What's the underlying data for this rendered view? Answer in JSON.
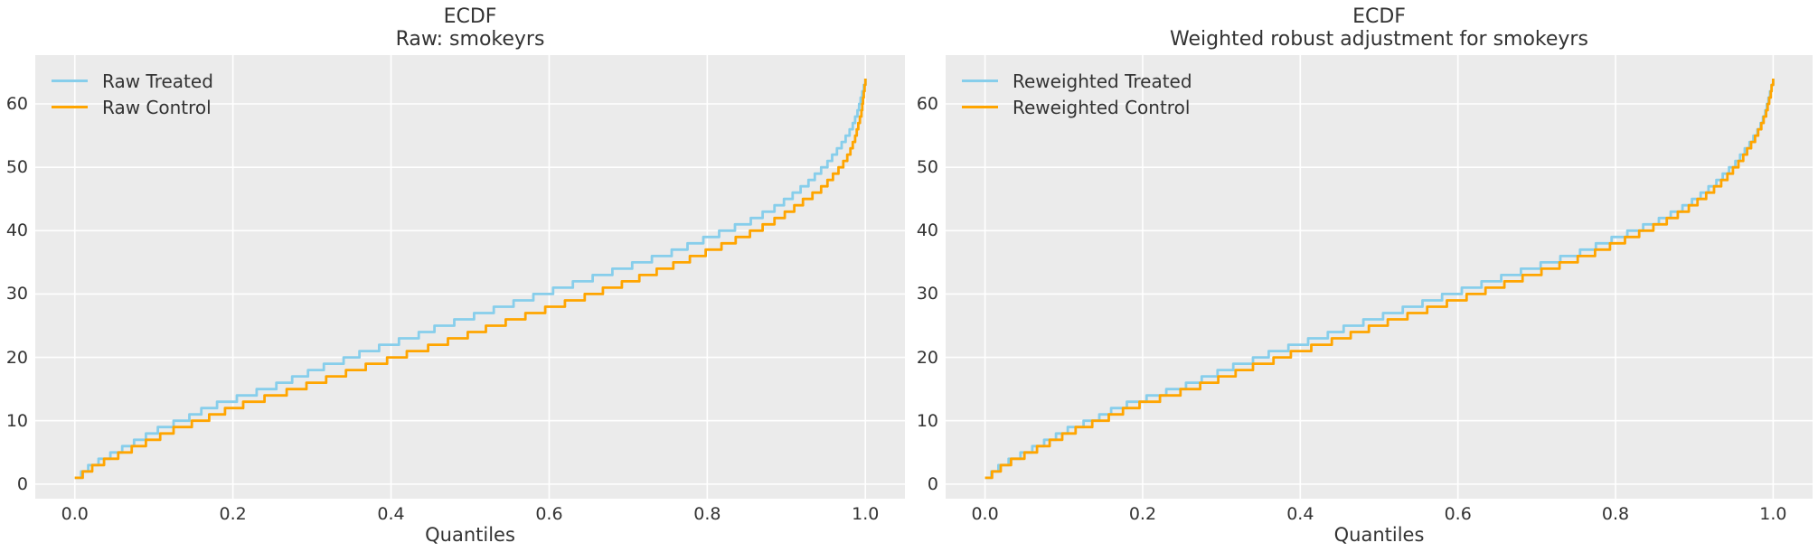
{
  "figure": {
    "background": "#ffffff",
    "axes_background": "#ebebeb",
    "grid_color": "#ffffff",
    "text_color": "#333333",
    "accent_colors": {
      "treated_line": "#87ceeb",
      "control_line": "#ffa500"
    }
  },
  "chart_data": [
    {
      "type": "line",
      "subtype": "quantile-step",
      "title": "ECDF",
      "subtitle": "Raw: smokeyrs",
      "xlabel": "Quantiles",
      "ylabel": "",
      "xlim": [
        -0.05,
        1.05
      ],
      "ylim": [
        -2.3,
        67.7
      ],
      "grid": true,
      "legend_position": "upper-left",
      "xticks": {
        "values": [
          0.0,
          0.2,
          0.4,
          0.6,
          0.8,
          1.0
        ],
        "labels": [
          "0.0",
          "0.2",
          "0.4",
          "0.6",
          "0.8",
          "1.0"
        ]
      },
      "yticks": {
        "values": [
          0,
          10,
          20,
          30,
          40,
          50,
          60
        ],
        "labels": [
          "0",
          "10",
          "20",
          "30",
          "40",
          "50",
          "60"
        ]
      },
      "series": [
        {
          "name": "Raw Treated",
          "color": "#87ceeb",
          "points": [
            [
              0,
              1
            ],
            [
              0.008,
              2
            ],
            [
              0.017,
              3
            ],
            [
              0.03,
              4
            ],
            [
              0.045,
              5
            ],
            [
              0.06,
              6
            ],
            [
              0.075,
              7
            ],
            [
              0.09,
              8
            ],
            [
              0.105,
              9
            ],
            [
              0.125,
              10
            ],
            [
              0.145,
              11
            ],
            [
              0.16,
              12
            ],
            [
              0.18,
              13
            ],
            [
              0.205,
              14
            ],
            [
              0.23,
              15
            ],
            [
              0.255,
              16
            ],
            [
              0.275,
              17
            ],
            [
              0.295,
              18
            ],
            [
              0.315,
              19
            ],
            [
              0.34,
              20
            ],
            [
              0.36,
              21
            ],
            [
              0.385,
              22
            ],
            [
              0.41,
              23
            ],
            [
              0.435,
              24
            ],
            [
              0.455,
              25
            ],
            [
              0.48,
              26
            ],
            [
              0.505,
              27
            ],
            [
              0.53,
              28
            ],
            [
              0.555,
              29
            ],
            [
              0.58,
              30
            ],
            [
              0.605,
              31
            ],
            [
              0.63,
              32
            ],
            [
              0.655,
              33
            ],
            [
              0.68,
              34
            ],
            [
              0.705,
              35
            ],
            [
              0.73,
              36
            ],
            [
              0.755,
              37
            ],
            [
              0.775,
              38
            ],
            [
              0.795,
              39
            ],
            [
              0.815,
              40
            ],
            [
              0.835,
              41
            ],
            [
              0.855,
              42
            ],
            [
              0.87,
              43
            ],
            [
              0.885,
              44
            ],
            [
              0.897,
              45
            ],
            [
              0.908,
              46
            ],
            [
              0.918,
              47
            ],
            [
              0.928,
              48
            ],
            [
              0.936,
              49
            ],
            [
              0.944,
              50
            ],
            [
              0.952,
              51
            ],
            [
              0.958,
              52
            ],
            [
              0.964,
              53
            ],
            [
              0.97,
              54
            ],
            [
              0.975,
              55
            ],
            [
              0.98,
              56
            ],
            [
              0.984,
              57
            ],
            [
              0.987,
              58
            ],
            [
              0.99,
              59
            ],
            [
              0.992,
              60
            ],
            [
              0.994,
              61
            ],
            [
              0.996,
              62
            ],
            [
              0.998,
              63
            ],
            [
              1,
              64
            ]
          ]
        },
        {
          "name": "Raw Control",
          "color": "#ffa500",
          "points": [
            [
              0,
              1
            ],
            [
              0.01,
              2
            ],
            [
              0.022,
              3
            ],
            [
              0.037,
              4
            ],
            [
              0.055,
              5
            ],
            [
              0.072,
              6
            ],
            [
              0.09,
              7
            ],
            [
              0.108,
              8
            ],
            [
              0.125,
              9
            ],
            [
              0.148,
              10
            ],
            [
              0.17,
              11
            ],
            [
              0.19,
              12
            ],
            [
              0.213,
              13
            ],
            [
              0.24,
              14
            ],
            [
              0.268,
              15
            ],
            [
              0.293,
              16
            ],
            [
              0.318,
              17
            ],
            [
              0.343,
              18
            ],
            [
              0.368,
              19
            ],
            [
              0.395,
              20
            ],
            [
              0.42,
              21
            ],
            [
              0.447,
              22
            ],
            [
              0.472,
              23
            ],
            [
              0.497,
              24
            ],
            [
              0.52,
              25
            ],
            [
              0.545,
              26
            ],
            [
              0.57,
              27
            ],
            [
              0.595,
              28
            ],
            [
              0.62,
              29
            ],
            [
              0.645,
              30
            ],
            [
              0.668,
              31
            ],
            [
              0.692,
              32
            ],
            [
              0.714,
              33
            ],
            [
              0.736,
              34
            ],
            [
              0.757,
              35
            ],
            [
              0.778,
              36
            ],
            [
              0.798,
              37
            ],
            [
              0.818,
              38
            ],
            [
              0.836,
              39
            ],
            [
              0.854,
              40
            ],
            [
              0.87,
              41
            ],
            [
              0.885,
              42
            ],
            [
              0.898,
              43
            ],
            [
              0.91,
              44
            ],
            [
              0.921,
              45
            ],
            [
              0.933,
              46
            ],
            [
              0.944,
              47
            ],
            [
              0.952,
              48
            ],
            [
              0.959,
              49
            ],
            [
              0.966,
              50
            ],
            [
              0.972,
              51
            ],
            [
              0.977,
              52
            ],
            [
              0.981,
              53
            ],
            [
              0.984,
              54
            ],
            [
              0.987,
              55
            ],
            [
              0.989,
              56
            ],
            [
              0.991,
              57
            ],
            [
              0.993,
              58
            ],
            [
              0.995,
              59
            ],
            [
              0.996,
              60
            ],
            [
              0.997,
              61
            ],
            [
              0.998,
              62
            ],
            [
              0.999,
              63
            ],
            [
              1,
              64
            ]
          ]
        }
      ]
    },
    {
      "type": "line",
      "subtype": "quantile-step",
      "title": "ECDF",
      "subtitle": "Weighted robust adjustment for smokeyrs",
      "xlabel": "Quantiles",
      "ylabel": "",
      "xlim": [
        -0.05,
        1.05
      ],
      "ylim": [
        -2.3,
        67.7
      ],
      "grid": true,
      "legend_position": "upper-left",
      "xticks": {
        "values": [
          0.0,
          0.2,
          0.4,
          0.6,
          0.8,
          1.0
        ],
        "labels": [
          "0.0",
          "0.2",
          "0.4",
          "0.6",
          "0.8",
          "1.0"
        ]
      },
      "yticks": {
        "values": [
          0,
          10,
          20,
          30,
          40,
          50,
          60
        ],
        "labels": [
          "0",
          "10",
          "20",
          "30",
          "40",
          "50",
          "60"
        ]
      },
      "series": [
        {
          "name": "Reweighted Treated",
          "color": "#87ceeb",
          "points": [
            [
              0,
              1
            ],
            [
              0.008,
              2
            ],
            [
              0.017,
              3
            ],
            [
              0.03,
              4
            ],
            [
              0.045,
              5
            ],
            [
              0.06,
              6
            ],
            [
              0.075,
              7
            ],
            [
              0.09,
              8
            ],
            [
              0.105,
              9
            ],
            [
              0.125,
              10
            ],
            [
              0.145,
              11
            ],
            [
              0.16,
              12
            ],
            [
              0.18,
              13
            ],
            [
              0.205,
              14
            ],
            [
              0.23,
              15
            ],
            [
              0.255,
              16
            ],
            [
              0.275,
              17
            ],
            [
              0.295,
              18
            ],
            [
              0.315,
              19
            ],
            [
              0.34,
              20
            ],
            [
              0.36,
              21
            ],
            [
              0.385,
              22
            ],
            [
              0.41,
              23
            ],
            [
              0.435,
              24
            ],
            [
              0.455,
              25
            ],
            [
              0.48,
              26
            ],
            [
              0.505,
              27
            ],
            [
              0.53,
              28
            ],
            [
              0.555,
              29
            ],
            [
              0.58,
              30
            ],
            [
              0.605,
              31
            ],
            [
              0.63,
              32
            ],
            [
              0.655,
              33
            ],
            [
              0.68,
              34
            ],
            [
              0.705,
              35
            ],
            [
              0.73,
              36
            ],
            [
              0.755,
              37
            ],
            [
              0.775,
              38
            ],
            [
              0.795,
              39
            ],
            [
              0.815,
              40
            ],
            [
              0.835,
              41
            ],
            [
              0.855,
              42
            ],
            [
              0.87,
              43
            ],
            [
              0.885,
              44
            ],
            [
              0.897,
              45
            ],
            [
              0.908,
              46
            ],
            [
              0.918,
              47
            ],
            [
              0.928,
              48
            ],
            [
              0.936,
              49
            ],
            [
              0.944,
              50
            ],
            [
              0.952,
              51
            ],
            [
              0.958,
              52
            ],
            [
              0.964,
              53
            ],
            [
              0.97,
              54
            ],
            [
              0.975,
              55
            ],
            [
              0.98,
              56
            ],
            [
              0.984,
              57
            ],
            [
              0.987,
              58
            ],
            [
              0.99,
              59
            ],
            [
              0.992,
              60
            ],
            [
              0.994,
              61
            ],
            [
              0.996,
              62
            ],
            [
              0.998,
              63
            ],
            [
              1,
              64
            ]
          ]
        },
        {
          "name": "Reweighted Control",
          "color": "#ffa500",
          "points": [
            [
              0,
              1
            ],
            [
              0.009,
              2
            ],
            [
              0.02,
              3
            ],
            [
              0.033,
              4
            ],
            [
              0.05,
              5
            ],
            [
              0.066,
              6
            ],
            [
              0.082,
              7
            ],
            [
              0.098,
              8
            ],
            [
              0.115,
              9
            ],
            [
              0.136,
              10
            ],
            [
              0.157,
              11
            ],
            [
              0.175,
              12
            ],
            [
              0.196,
              13
            ],
            [
              0.222,
              14
            ],
            [
              0.248,
              15
            ],
            [
              0.273,
              16
            ],
            [
              0.296,
              17
            ],
            [
              0.318,
              18
            ],
            [
              0.34,
              19
            ],
            [
              0.366,
              20
            ],
            [
              0.388,
              21
            ],
            [
              0.414,
              22
            ],
            [
              0.44,
              23
            ],
            [
              0.464,
              24
            ],
            [
              0.487,
              25
            ],
            [
              0.511,
              26
            ],
            [
              0.536,
              27
            ],
            [
              0.561,
              28
            ],
            [
              0.586,
              29
            ],
            [
              0.611,
              30
            ],
            [
              0.635,
              31
            ],
            [
              0.659,
              32
            ],
            [
              0.682,
              33
            ],
            [
              0.706,
              34
            ],
            [
              0.729,
              35
            ],
            [
              0.752,
              36
            ],
            [
              0.774,
              37
            ],
            [
              0.793,
              38
            ],
            [
              0.812,
              39
            ],
            [
              0.83,
              40
            ],
            [
              0.848,
              41
            ],
            [
              0.865,
              42
            ],
            [
              0.879,
              43
            ],
            [
              0.893,
              44
            ],
            [
              0.904,
              45
            ],
            [
              0.915,
              46
            ],
            [
              0.925,
              47
            ],
            [
              0.934,
              48
            ],
            [
              0.942,
              49
            ],
            [
              0.949,
              50
            ],
            [
              0.956,
              51
            ],
            [
              0.962,
              52
            ],
            [
              0.967,
              53
            ],
            [
              0.972,
              54
            ],
            [
              0.977,
              55
            ],
            [
              0.981,
              56
            ],
            [
              0.985,
              57
            ],
            [
              0.988,
              58
            ],
            [
              0.991,
              59
            ],
            [
              0.993,
              60
            ],
            [
              0.995,
              61
            ],
            [
              0.997,
              62
            ],
            [
              0.998,
              63
            ],
            [
              1,
              64
            ]
          ]
        }
      ]
    }
  ]
}
